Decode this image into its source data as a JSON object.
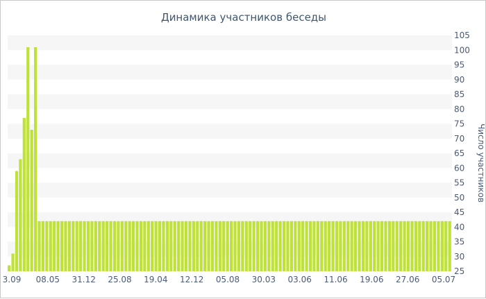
{
  "chart_data": {
    "type": "bar",
    "title": "Динамика участников беседы",
    "xlabel": "",
    "ylabel": "Число участников",
    "ylim": [
      25,
      105
    ],
    "ytick_step": 5,
    "y_axis_side": "right",
    "grid": "alternating horizontal bands",
    "legend": "none",
    "x_tick_labels": [
      "3.09",
      "08.05",
      "31.12",
      "25.08",
      "19.04",
      "12.12",
      "05.08",
      "30.03",
      "03.06",
      "11.06",
      "19.06",
      "27.06",
      "05.07"
    ],
    "bar_count": 118,
    "initial_values": [
      27,
      31,
      59,
      63,
      77,
      101,
      73,
      101
    ],
    "plateau_value": 42,
    "colors": {
      "bar": "#bfe23a",
      "band": "#f6f6f6",
      "text": "#4a5a78",
      "title": "#3e576f"
    }
  }
}
